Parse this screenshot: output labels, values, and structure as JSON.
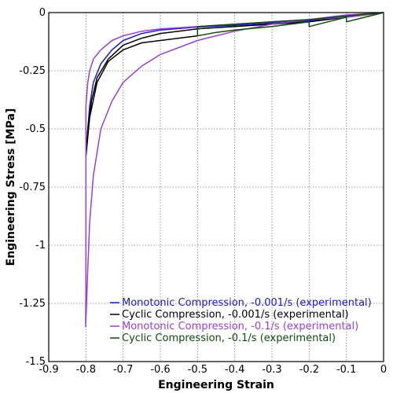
{
  "chart_data": {
    "type": "line",
    "title": "",
    "xlabel": "Engineering Strain",
    "ylabel": "Engineering Stress [MPa]",
    "xlim": [
      -0.9,
      0
    ],
    "ylim": [
      -1.5,
      0
    ],
    "grid": true,
    "legend_position": "bottom-right",
    "x_ticks": [
      -0.9,
      -0.8,
      -0.7,
      -0.6,
      -0.5,
      -0.4,
      -0.3,
      -0.2,
      -0.1,
      0
    ],
    "x_tick_labels": [
      "-0.9",
      "-0.8",
      "-0.7",
      "-0.6",
      "-0.5",
      "-0.4",
      "-0.3",
      "-0.2",
      "-0.1",
      "0"
    ],
    "y_ticks": [
      0,
      -0.25,
      -0.5,
      -0.75,
      -1,
      -1.25,
      -1.5
    ],
    "y_tick_labels": [
      "0",
      "-0.25",
      "-0.5",
      "-0.75",
      "-1",
      "-1.25",
      "-1.5"
    ],
    "series": [
      {
        "name": "Monotonic Compression, -0.001/s (experimental)",
        "color": "#1a1acc",
        "points": [
          [
            0,
            0
          ],
          [
            -0.05,
            -0.01
          ],
          [
            -0.1,
            -0.02
          ],
          [
            -0.2,
            -0.035
          ],
          [
            -0.3,
            -0.045
          ],
          [
            -0.4,
            -0.055
          ],
          [
            -0.5,
            -0.062
          ],
          [
            -0.6,
            -0.075
          ],
          [
            -0.65,
            -0.09
          ],
          [
            -0.7,
            -0.12
          ],
          [
            -0.73,
            -0.16
          ],
          [
            -0.76,
            -0.22
          ],
          [
            -0.78,
            -0.3
          ],
          [
            -0.79,
            -0.4
          ],
          [
            -0.795,
            -0.5
          ],
          [
            -0.797,
            -0.56
          ]
        ]
      },
      {
        "name": "Cyclic Compression, -0.001/s (experimental)",
        "color": "#000000",
        "points": [
          [
            0,
            0
          ],
          [
            -0.1,
            -0.02
          ],
          [
            -0.2,
            -0.04
          ],
          [
            -0.3,
            -0.05
          ],
          [
            -0.4,
            -0.06
          ],
          [
            -0.5,
            -0.07
          ],
          [
            -0.6,
            -0.09
          ],
          [
            -0.65,
            -0.11
          ],
          [
            -0.7,
            -0.14
          ],
          [
            -0.74,
            -0.2
          ],
          [
            -0.77,
            -0.28
          ],
          [
            -0.785,
            -0.38
          ],
          [
            -0.795,
            -0.5
          ],
          [
            -0.8,
            -0.62
          ],
          [
            -0.79,
            -0.45
          ],
          [
            -0.77,
            -0.3
          ],
          [
            -0.74,
            -0.21
          ],
          [
            -0.7,
            -0.16
          ],
          [
            -0.65,
            -0.13
          ],
          [
            -0.6,
            -0.12
          ],
          [
            -0.5,
            -0.1
          ]
        ]
      },
      {
        "name": "Monotonic Compression, -0.1/s (experimental)",
        "color": "#9a3fd6",
        "points": [
          [
            0,
            0
          ],
          [
            -0.05,
            -0.01
          ],
          [
            -0.1,
            -0.02
          ],
          [
            -0.2,
            -0.03
          ],
          [
            -0.3,
            -0.04
          ],
          [
            -0.4,
            -0.05
          ],
          [
            -0.5,
            -0.06
          ],
          [
            -0.6,
            -0.07
          ],
          [
            -0.65,
            -0.08
          ],
          [
            -0.7,
            -0.1
          ],
          [
            -0.73,
            -0.12
          ],
          [
            -0.76,
            -0.16
          ],
          [
            -0.78,
            -0.2
          ],
          [
            -0.79,
            -0.25
          ],
          [
            -0.795,
            -0.3
          ],
          [
            -0.8,
            -0.4
          ],
          [
            -0.8,
            -0.6
          ],
          [
            -0.8,
            -0.8
          ],
          [
            -0.8,
            -1.0
          ],
          [
            -0.8,
            -1.2
          ],
          [
            -0.801,
            -1.35
          ],
          [
            -0.799,
            -1.28
          ],
          [
            -0.795,
            -1.1
          ],
          [
            -0.79,
            -0.9
          ],
          [
            -0.78,
            -0.7
          ],
          [
            -0.76,
            -0.5
          ],
          [
            -0.73,
            -0.38
          ],
          [
            -0.7,
            -0.3
          ],
          [
            -0.65,
            -0.23
          ],
          [
            -0.6,
            -0.18
          ],
          [
            -0.5,
            -0.12
          ],
          [
            -0.4,
            -0.08
          ],
          [
            -0.3,
            -0.05
          ],
          [
            -0.2,
            -0.03
          ],
          [
            -0.1,
            -0.01
          ],
          [
            0,
            0
          ]
        ]
      },
      {
        "name": "Cyclic Compression, -0.1/s (experimental)",
        "color": "#0e4a0e",
        "points": [
          [
            0,
            0
          ],
          [
            -0.1,
            -0.015
          ],
          [
            -0.2,
            -0.03
          ],
          [
            -0.3,
            -0.04
          ],
          [
            -0.4,
            -0.05
          ],
          [
            -0.5,
            -0.06
          ],
          [
            -0.5,
            -0.1
          ],
          [
            -0.45,
            -0.085
          ],
          [
            -0.4,
            -0.075
          ],
          [
            -0.3,
            -0.06
          ],
          [
            -0.2,
            -0.04
          ],
          [
            -0.2,
            -0.06
          ],
          [
            -0.15,
            -0.04
          ],
          [
            -0.1,
            -0.02
          ],
          [
            -0.1,
            -0.04
          ],
          [
            -0.05,
            -0.02
          ],
          [
            0,
            0
          ]
        ]
      }
    ]
  }
}
